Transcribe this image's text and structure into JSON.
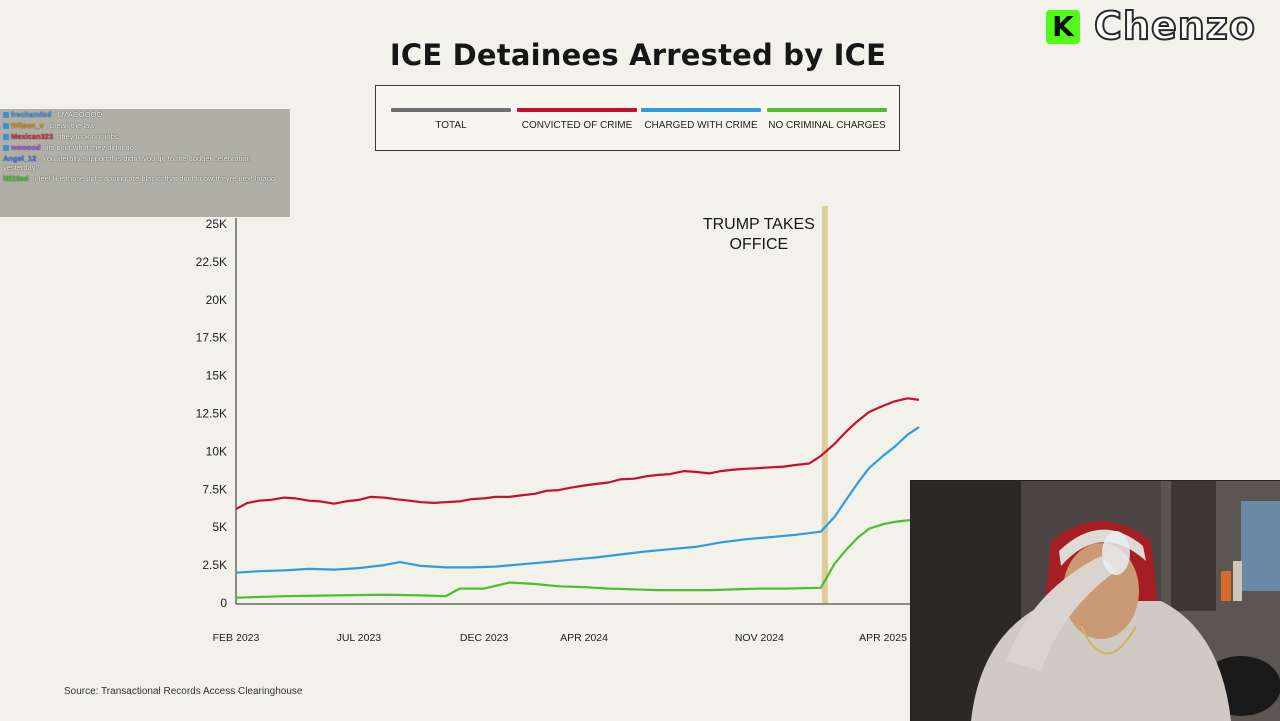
{
  "chart_data": {
    "type": "line",
    "title": "ICE Detainees Arrested by ICE",
    "legend_position": "top",
    "y_ticks": [
      "0",
      "2.5K",
      "5K",
      "7.5K",
      "10K",
      "12.5K",
      "15K",
      "17.5K",
      "20K",
      "22.5K",
      "25K"
    ],
    "ylim": [
      0,
      25000
    ],
    "x_ticks": [
      "FEB 2023",
      "JUL 2023",
      "DEC 2023",
      "APR 2024",
      "NOV 2024",
      "APR 2025"
    ],
    "annotation": {
      "text_line1": "TRUMP TAKES",
      "text_line2": "OFFICE",
      "date": "2025-01-20"
    },
    "series": [
      {
        "name": "TOTAL",
        "color": "#6f6f6f",
        "points": []
      },
      {
        "name": "CONVICTED OF CRIME",
        "color": "#c8102e",
        "points": [
          [
            "2023-02-01",
            6200
          ],
          [
            "2023-02-15",
            6600
          ],
          [
            "2023-03-01",
            6750
          ],
          [
            "2023-03-15",
            6800
          ],
          [
            "2023-04-01",
            6950
          ],
          [
            "2023-04-15",
            6900
          ],
          [
            "2023-05-01",
            6750
          ],
          [
            "2023-05-15",
            6700
          ],
          [
            "2023-06-01",
            6550
          ],
          [
            "2023-06-15",
            6700
          ],
          [
            "2023-07-01",
            6800
          ],
          [
            "2023-07-15",
            7000
          ],
          [
            "2023-08-01",
            6950
          ],
          [
            "2023-08-15",
            6850
          ],
          [
            "2023-09-01",
            6750
          ],
          [
            "2023-09-15",
            6650
          ],
          [
            "2023-10-01",
            6600
          ],
          [
            "2023-10-15",
            6650
          ],
          [
            "2023-11-01",
            6700
          ],
          [
            "2023-11-15",
            6850
          ],
          [
            "2023-12-01",
            6900
          ],
          [
            "2023-12-15",
            7000
          ],
          [
            "2024-01-01",
            7000
          ],
          [
            "2024-01-15",
            7100
          ],
          [
            "2024-02-01",
            7200
          ],
          [
            "2024-02-15",
            7400
          ],
          [
            "2024-03-01",
            7450
          ],
          [
            "2024-03-15",
            7600
          ],
          [
            "2024-04-01",
            7750
          ],
          [
            "2024-04-15",
            7850
          ],
          [
            "2024-05-01",
            7950
          ],
          [
            "2024-05-15",
            8150
          ],
          [
            "2024-06-01",
            8200
          ],
          [
            "2024-06-15",
            8350
          ],
          [
            "2024-07-01",
            8450
          ],
          [
            "2024-07-15",
            8500
          ],
          [
            "2024-08-01",
            8700
          ],
          [
            "2024-08-15",
            8650
          ],
          [
            "2024-09-01",
            8550
          ],
          [
            "2024-09-15",
            8700
          ],
          [
            "2024-10-01",
            8800
          ],
          [
            "2024-10-15",
            8850
          ],
          [
            "2024-11-01",
            8900
          ],
          [
            "2024-11-15",
            8950
          ],
          [
            "2024-12-01",
            9000
          ],
          [
            "2024-12-15",
            9100
          ],
          [
            "2025-01-01",
            9200
          ],
          [
            "2025-01-15",
            9700
          ],
          [
            "2025-02-01",
            10500
          ],
          [
            "2025-02-15",
            11300
          ],
          [
            "2025-03-01",
            12000
          ],
          [
            "2025-03-15",
            12600
          ],
          [
            "2025-04-01",
            13000
          ],
          [
            "2025-04-15",
            13300
          ],
          [
            "2025-05-01",
            13500
          ],
          [
            "2025-05-15",
            13400
          ]
        ]
      },
      {
        "name": "CHARGED WITH CRIME",
        "color": "#2f9be0",
        "points": [
          [
            "2023-02-01",
            2000
          ],
          [
            "2023-03-01",
            2100
          ],
          [
            "2023-04-01",
            2150
          ],
          [
            "2023-05-01",
            2250
          ],
          [
            "2023-06-01",
            2200
          ],
          [
            "2023-07-01",
            2300
          ],
          [
            "2023-08-01",
            2500
          ],
          [
            "2023-08-20",
            2700
          ],
          [
            "2023-09-15",
            2450
          ],
          [
            "2023-10-15",
            2350
          ],
          [
            "2023-11-15",
            2350
          ],
          [
            "2023-12-15",
            2400
          ],
          [
            "2024-01-15",
            2550
          ],
          [
            "2024-02-15",
            2700
          ],
          [
            "2024-03-15",
            2850
          ],
          [
            "2024-04-15",
            3000
          ],
          [
            "2024-05-15",
            3200
          ],
          [
            "2024-06-15",
            3400
          ],
          [
            "2024-07-15",
            3550
          ],
          [
            "2024-08-15",
            3700
          ],
          [
            "2024-09-15",
            4000
          ],
          [
            "2024-10-15",
            4200
          ],
          [
            "2024-11-15",
            4350
          ],
          [
            "2024-12-15",
            4500
          ],
          [
            "2025-01-15",
            4700
          ],
          [
            "2025-02-01",
            5700
          ],
          [
            "2025-02-15",
            6800
          ],
          [
            "2025-03-01",
            7900
          ],
          [
            "2025-03-15",
            8900
          ],
          [
            "2025-04-01",
            9700
          ],
          [
            "2025-04-15",
            10300
          ],
          [
            "2025-05-01",
            11100
          ],
          [
            "2025-05-15",
            11600
          ]
        ]
      },
      {
        "name": "NO CRIMINAL CHARGES",
        "color": "#4cbe2f",
        "points": [
          [
            "2023-02-01",
            350
          ],
          [
            "2023-04-01",
            450
          ],
          [
            "2023-06-01",
            500
          ],
          [
            "2023-08-01",
            550
          ],
          [
            "2023-09-15",
            500
          ],
          [
            "2023-10-15",
            450
          ],
          [
            "2023-11-01",
            950
          ],
          [
            "2023-12-01",
            950
          ],
          [
            "2024-01-01",
            1350
          ],
          [
            "2024-02-01",
            1250
          ],
          [
            "2024-03-01",
            1100
          ],
          [
            "2024-04-01",
            1050
          ],
          [
            "2024-05-01",
            950
          ],
          [
            "2024-06-01",
            900
          ],
          [
            "2024-07-01",
            850
          ],
          [
            "2024-08-01",
            850
          ],
          [
            "2024-09-01",
            850
          ],
          [
            "2024-10-01",
            900
          ],
          [
            "2024-11-01",
            950
          ],
          [
            "2024-12-01",
            950
          ],
          [
            "2025-01-15",
            1000
          ],
          [
            "2025-02-01",
            2600
          ],
          [
            "2025-02-15",
            3500
          ],
          [
            "2025-03-01",
            4300
          ],
          [
            "2025-03-15",
            4900
          ],
          [
            "2025-04-01",
            5200
          ],
          [
            "2025-04-15",
            5350
          ],
          [
            "2025-05-01",
            5450
          ],
          [
            "2025-05-15",
            5500
          ]
        ]
      }
    ],
    "source": "Source: Transactional Records Access Clearinghouse"
  },
  "overlay": {
    "brand_k": "K",
    "brand_name": "Chenzo",
    "chat": [
      {
        "user": "frechanded",
        "text": ": LMAOOOOO"
      },
      {
        "user": "Wilson_v",
        "text": ": break the law"
      },
      {
        "user": "Mexican323",
        "text": ": they took our jobs"
      },
      {
        "user": "wewood",
        "text": ": its bout what they didnt do"
      },
      {
        "user": "Angel_12",
        "text": ": You literally support this didn't you go to the dodger celebration yesterday?"
      },
      {
        "user": "l0l23ed",
        "text": ": i feel like those ppl clapping are blacks that dont know theyre next lmaoo"
      }
    ]
  }
}
